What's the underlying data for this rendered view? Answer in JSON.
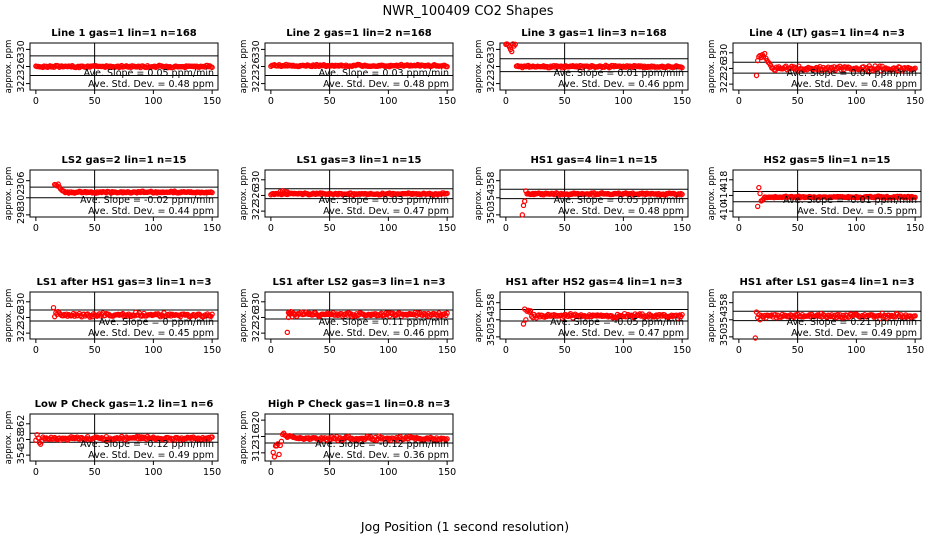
{
  "figure": {
    "title": "NWR_100409  CO2 Shapes",
    "xlabel": "Jog Position (1 second resolution)",
    "ylabel": "approx. ppm",
    "point_color": "#ff0000",
    "line_color": "#000000"
  },
  "chart_data": [
    {
      "type": "scatter",
      "title": "Line 1 gas=1 lin=1 n=168",
      "ylim": [
        320.5,
        331.5
      ],
      "yticks": [
        322,
        326,
        330
      ],
      "hlines": [
        328.5,
        323.9
      ],
      "xlim": [
        -5,
        155
      ],
      "xticks": [
        0,
        50,
        100,
        150
      ],
      "vline": 50,
      "series": {
        "start": 0,
        "end": 150,
        "level": 326.0,
        "noise": 0.12,
        "transient": []
      },
      "slope_text": "Ave. Slope =  0.05  ppm/min",
      "sd_text": "Ave. Std. Dev. =  0.48  ppm"
    },
    {
      "type": "scatter",
      "title": "Line 2 gas=1 lin=2 n=168",
      "ylim": [
        320.5,
        331.5
      ],
      "yticks": [
        322,
        326,
        330
      ],
      "hlines": [
        328.5,
        323.9
      ],
      "xlim": [
        -5,
        155
      ],
      "xticks": [
        0,
        50,
        100,
        150
      ],
      "vline": 50,
      "series": {
        "start": 0,
        "end": 150,
        "level": 326.2,
        "noise": 0.12,
        "transient": []
      },
      "slope_text": "Ave. Slope =  0.03  ppm/min",
      "sd_text": "Ave. Std. Dev. =  0.48  ppm"
    },
    {
      "type": "scatter",
      "title": "Line 3 gas=1 lin=3 n=168",
      "ylim": [
        320.5,
        331.5
      ],
      "yticks": [
        322,
        326,
        330
      ],
      "hlines": [
        327.8,
        324.8
      ],
      "xlim": [
        -5,
        155
      ],
      "xticks": [
        0,
        50,
        100,
        150
      ],
      "vline": 50,
      "series": {
        "start": 9,
        "end": 150,
        "level": 326.0,
        "noise": 0.12,
        "transient": [
          [
            0,
            331.2
          ],
          [
            1,
            331.4
          ],
          [
            2,
            331.0
          ],
          [
            3,
            330.6
          ],
          [
            4,
            330.0
          ],
          [
            5,
            329.5
          ],
          [
            6,
            331.3
          ],
          [
            7,
            330.8
          ],
          [
            8,
            331.2
          ]
        ]
      },
      "slope_text": "Ave. Slope =  0.01  ppm/min",
      "sd_text": "Ave. Std. Dev. =  0.46  ppm"
    },
    {
      "type": "scatter",
      "title": "Line 4 (LT) gas=1 lin=4 n=3",
      "ylim": [
        320.5,
        332.5
      ],
      "yticks": [
        322,
        326,
        330
      ],
      "hlines": [
        327.6,
        324.8
      ],
      "xlim": [
        -5,
        155
      ],
      "xticks": [
        0,
        50,
        100,
        150
      ],
      "vline": 50,
      "series": {
        "start": 28,
        "end": 150,
        "level": 326.0,
        "noise": 0.28,
        "transient": [
          [
            15,
            324.2
          ],
          [
            16,
            328.0
          ],
          [
            17,
            329.0
          ],
          [
            18,
            329.3
          ],
          [
            19,
            328.8
          ],
          [
            20,
            329.5
          ],
          [
            21,
            329.0
          ],
          [
            22,
            329.8
          ],
          [
            23,
            328.6
          ],
          [
            24,
            328.0
          ],
          [
            25,
            327.6
          ],
          [
            26,
            327.3
          ],
          [
            27,
            326.8
          ]
        ]
      },
      "slope_text": "Ave. Slope =  0.04  ppm/min",
      "sd_text": "Ave. Std. Dev. =  0.48  ppm"
    },
    {
      "type": "scatter",
      "title": "LS2 gas=2 lin=1 n=15",
      "ylim": [
        297.5,
        308.5
      ],
      "yticks": [
        298,
        302,
        306
      ],
      "hlines": [
        304.5,
        302.0
      ],
      "xlim": [
        -5,
        155
      ],
      "xticks": [
        0,
        50,
        100,
        150
      ],
      "vline": 50,
      "series": {
        "start": 24,
        "end": 150,
        "level": 303.3,
        "noise": 0.1,
        "transient": [
          [
            16,
            305.1
          ],
          [
            17,
            305.0
          ],
          [
            18,
            304.8
          ],
          [
            19,
            305.2
          ],
          [
            20,
            304.5
          ],
          [
            21,
            304.1
          ],
          [
            22,
            303.8
          ],
          [
            23,
            303.6
          ]
        ]
      },
      "slope_text": "Ave. Slope =  -0.02  ppm/min",
      "sd_text": "Ave. Std. Dev. =  0.44  ppm"
    },
    {
      "type": "scatter",
      "title": "LS1 gas=3 lin=1 n=15",
      "ylim": [
        320.5,
        332.5
      ],
      "yticks": [
        322,
        326,
        330
      ],
      "hlines": [
        327.7,
        325.2
      ],
      "xlim": [
        -5,
        155
      ],
      "xticks": [
        0,
        50,
        100,
        150
      ],
      "vline": 50,
      "series": {
        "start": 0,
        "end": 150,
        "level": 326.4,
        "noise": 0.12,
        "transient": [
          [
            8,
            327.0
          ],
          [
            10,
            327.2
          ],
          [
            12,
            327.0
          ],
          [
            14,
            326.9
          ]
        ]
      },
      "slope_text": "Ave. Slope =  0.03  ppm/min",
      "sd_text": "Ave. Std. Dev. =  0.47  ppm"
    },
    {
      "type": "scatter",
      "title": "HS1 gas=4 lin=1 n=15",
      "ylim": [
        349.5,
        360.5
      ],
      "yticks": [
        350,
        354,
        358
      ],
      "hlines": [
        356.0,
        353.8
      ],
      "xlim": [
        -5,
        155
      ],
      "xticks": [
        0,
        50,
        100,
        150
      ],
      "vline": 50,
      "series": {
        "start": 18,
        "end": 150,
        "level": 354.9,
        "noise": 0.12,
        "transient": [
          [
            14,
            350.0
          ],
          [
            15,
            352.2
          ],
          [
            16,
            353.2
          ],
          [
            17,
            355.6
          ]
        ]
      },
      "slope_text": "Ave. Slope =  0.05  ppm/min",
      "sd_text": "Ave. Std. Dev. =  0.48  ppm"
    },
    {
      "type": "scatter",
      "title": "HS2 gas=5 lin=1 n=15",
      "ylim": [
        408.5,
        420.5
      ],
      "yticks": [
        410,
        414,
        418
      ],
      "hlines": [
        415.0,
        412.4
      ],
      "xlim": [
        -5,
        155
      ],
      "xticks": [
        0,
        50,
        100,
        150
      ],
      "vline": 50,
      "series": {
        "start": 22,
        "end": 150,
        "level": 413.6,
        "noise": 0.1,
        "transient": [
          [
            16,
            411.2
          ],
          [
            17,
            416.0
          ],
          [
            18,
            414.5
          ],
          [
            19,
            412.6
          ],
          [
            20,
            412.8
          ],
          [
            21,
            413.1
          ]
        ]
      },
      "slope_text": "Ave. Slope =  -0.01  ppm/min",
      "sd_text": "Ave. Std. Dev. =  0.5  ppm"
    },
    {
      "type": "scatter",
      "title": "LS1 after HS1 gas=3 lin=1 n=3",
      "ylim": [
        320.5,
        332.5
      ],
      "yticks": [
        322,
        326,
        330
      ],
      "hlines": [
        327.9,
        325.1
      ],
      "xlim": [
        -5,
        155
      ],
      "xticks": [
        0,
        50,
        100,
        150
      ],
      "vline": 50,
      "series": {
        "start": 20,
        "end": 150,
        "level": 326.6,
        "noise": 0.28,
        "transient": [
          [
            15,
            328.5
          ],
          [
            16,
            326.2
          ],
          [
            17,
            327.2
          ],
          [
            18,
            326.8
          ],
          [
            19,
            327.5
          ]
        ]
      },
      "slope_text": "Ave. Slope =  0  ppm/min",
      "sd_text": "Ave. Std. Dev. =  0.45  ppm"
    },
    {
      "type": "scatter",
      "title": "LS1 after LS2 gas=3 lin=1 n=3",
      "ylim": [
        320.5,
        332.5
      ],
      "yticks": [
        322,
        326,
        330
      ],
      "hlines": [
        327.9,
        325.6
      ],
      "xlim": [
        -5,
        155
      ],
      "xticks": [
        0,
        50,
        100,
        150
      ],
      "vline": 50,
      "series": {
        "start": 15,
        "end": 150,
        "level": 326.8,
        "noise": 0.25,
        "transient": [
          [
            14,
            322.2
          ],
          [
            15,
            326.0
          ],
          [
            16,
            326.9
          ],
          [
            17,
            327.5
          ]
        ]
      },
      "slope_text": "Ave. Slope =  0.11  ppm/min",
      "sd_text": "Ave. Std. Dev. =  0.46  ppm"
    },
    {
      "type": "scatter",
      "title": "HS1 after HS2 gas=4 lin=1 n=3",
      "ylim": [
        349.5,
        360.5
      ],
      "yticks": [
        350,
        354,
        358
      ],
      "hlines": [
        356.4,
        353.7
      ],
      "xlim": [
        -5,
        155
      ],
      "xticks": [
        0,
        50,
        100,
        150
      ],
      "vline": 50,
      "series": {
        "start": 22,
        "end": 150,
        "level": 354.9,
        "noise": 0.22,
        "transient": [
          [
            15,
            353.0
          ],
          [
            16,
            356.5
          ],
          [
            17,
            354.0
          ],
          [
            18,
            356.0
          ],
          [
            19,
            356.2
          ],
          [
            20,
            355.8
          ],
          [
            21,
            356.1
          ]
        ]
      },
      "slope_text": "Ave. Slope =  -0.05  ppm/min",
      "sd_text": "Ave. Std. Dev. =  0.47  ppm"
    },
    {
      "type": "scatter",
      "title": "HS1 after LS1 gas=4 lin=1 n=3",
      "ylim": [
        349.5,
        360.5
      ],
      "yticks": [
        350,
        354,
        358
      ],
      "hlines": [
        356.0,
        353.8
      ],
      "xlim": [
        -5,
        155
      ],
      "xticks": [
        0,
        50,
        100,
        150
      ],
      "vline": 50,
      "series": {
        "start": 20,
        "end": 150,
        "level": 354.9,
        "noise": 0.25,
        "transient": [
          [
            14,
            349.7
          ],
          [
            15,
            355.8
          ],
          [
            16,
            354.5
          ],
          [
            17,
            355.2
          ],
          [
            18,
            354.0
          ],
          [
            19,
            355.0
          ]
        ]
      },
      "slope_text": "Ave. Slope =  0.21  ppm/min",
      "sd_text": "Ave. Std. Dev. =  0.49  ppm"
    },
    {
      "type": "scatter",
      "title": "Low P Check gas=1.2 lin=1 n=6",
      "ylim": [
        352.5,
        364.5
      ],
      "yticks": [
        354,
        358,
        362
      ],
      "hlines": [
        359.6,
        357.3
      ],
      "xlim": [
        -5,
        155
      ],
      "xticks": [
        0,
        50,
        100,
        150
      ],
      "vline": 50,
      "series": {
        "start": 6,
        "end": 150,
        "level": 358.3,
        "noise": 0.22,
        "transient": [
          [
            0,
            357.8
          ],
          [
            1,
            359.2
          ],
          [
            2,
            358.4
          ],
          [
            3,
            357.2
          ],
          [
            4,
            356.8
          ],
          [
            5,
            357.5
          ]
        ]
      },
      "slope_text": "Ave. Slope =  -0.12  ppm/min",
      "sd_text": "Ave. Std. Dev. =  0.49  ppm"
    },
    {
      "type": "scatter",
      "title": "High P Check gas=1 lin=0.8 n=3",
      "ylim": [
        310.0,
        321.5
      ],
      "yticks": [
        312,
        316,
        320
      ],
      "hlines": [
        316.6,
        314.4
      ],
      "xlim": [
        -5,
        155
      ],
      "xticks": [
        0,
        50,
        100,
        150
      ],
      "vline": 50,
      "series": {
        "start": 20,
        "end": 150,
        "level": 315.5,
        "noise": 0.22,
        "transient": [
          [
            2,
            312.1
          ],
          [
            3,
            311.0
          ],
          [
            4,
            313.7
          ],
          [
            5,
            313.7
          ],
          [
            6,
            314.2
          ],
          [
            7,
            311.6
          ],
          [
            8,
            313.8
          ],
          [
            9,
            314.8
          ],
          [
            10,
            316.5
          ],
          [
            11,
            316.8
          ],
          [
            12,
            316.3
          ],
          [
            13,
            316.2
          ],
          [
            14,
            315.8
          ],
          [
            15,
            316.0
          ],
          [
            16,
            316.2
          ],
          [
            17,
            316.1
          ],
          [
            18,
            316.0
          ],
          [
            19,
            315.8
          ]
        ]
      },
      "slope_text": "Ave. Slope =  -0.12  ppm/min",
      "sd_text": "Ave. Std. Dev. =  0.36  ppm"
    }
  ]
}
